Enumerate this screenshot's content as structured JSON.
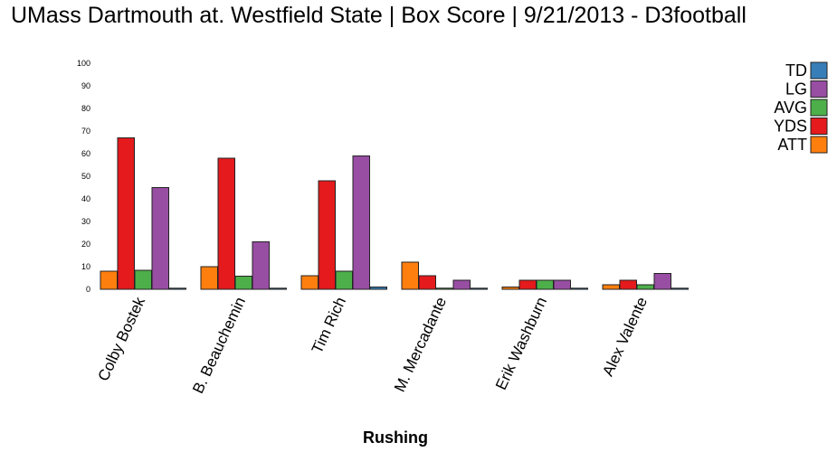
{
  "title": "UMass Dartmouth at. Westfield State | Box Score | 9/21/2013 - D3football",
  "chart_data": {
    "type": "bar",
    "title": "UMass Dartmouth at. Westfield State | Box Score | 9/21/2013 - D3football",
    "xlabel": "Rushing",
    "ylabel": "",
    "ylim": [
      0,
      100
    ],
    "yticks": [
      0,
      10,
      20,
      30,
      40,
      50,
      60,
      70,
      80,
      90,
      100
    ],
    "categories": [
      "Colby Bostek",
      "B. Beauchemin",
      "Tim Rich",
      "M. Mercadante",
      "Erik Washburn",
      "Alex Valente"
    ],
    "series": [
      {
        "name": "ATT",
        "color": "#ff7f0e",
        "values": [
          8,
          10,
          6,
          12,
          1,
          2
        ]
      },
      {
        "name": "YDS",
        "color": "#e41a1c",
        "values": [
          67,
          58,
          48,
          6,
          4,
          4
        ]
      },
      {
        "name": "AVG",
        "color": "#4daf4a",
        "values": [
          8.4,
          5.8,
          8.0,
          0.5,
          4.0,
          2.0
        ]
      },
      {
        "name": "LG",
        "color": "#984ea3",
        "values": [
          45,
          21,
          59,
          4,
          4,
          7
        ]
      },
      {
        "name": "TD",
        "color": "#377eb8",
        "values": [
          0,
          0,
          1,
          0,
          0,
          0
        ]
      }
    ],
    "legend_position": "top-right",
    "legend_order": [
      "TD",
      "LG",
      "AVG",
      "YDS",
      "ATT"
    ],
    "grid": false
  }
}
